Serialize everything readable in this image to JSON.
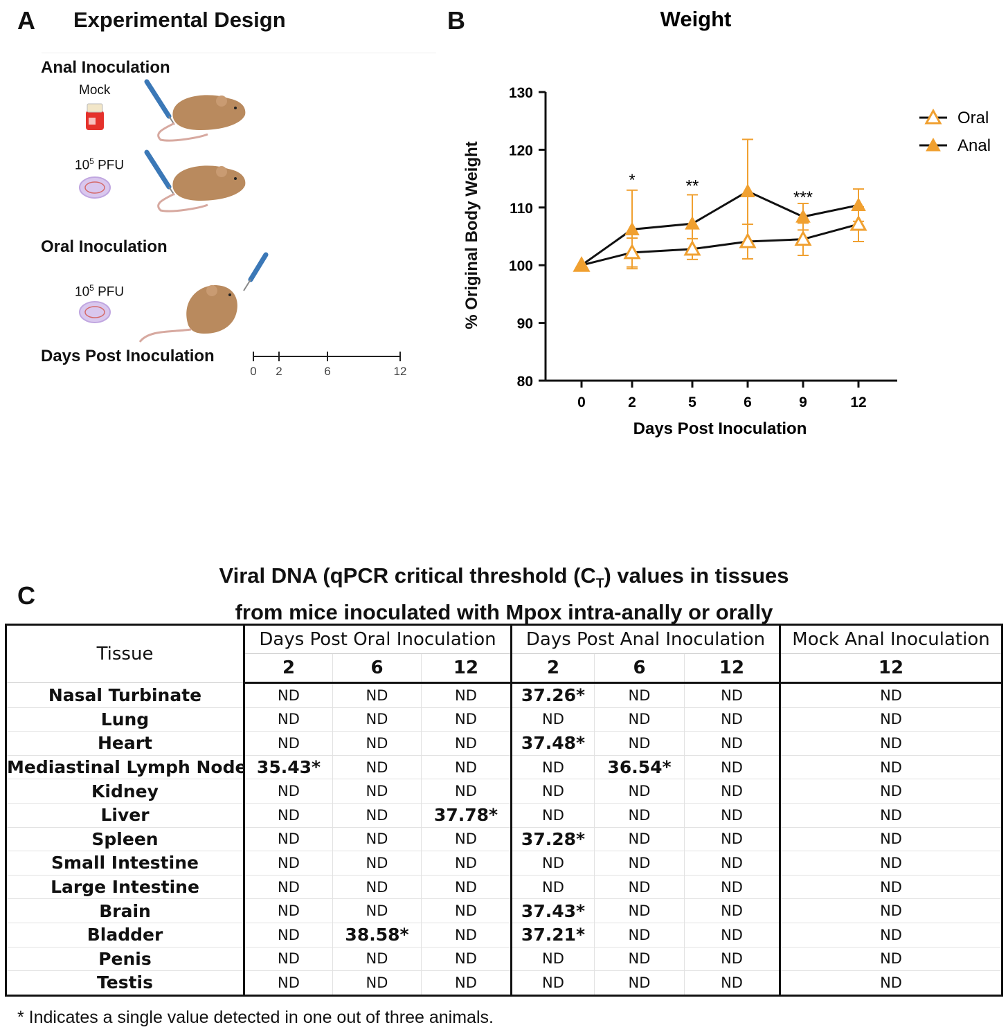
{
  "panel_a": {
    "letter": "A",
    "title": "Experimental Design",
    "anal_inoculation": "Anal Inoculation",
    "mock": "Mock",
    "dose1_base": "10",
    "dose1_exp": "5",
    "dose1_unit": " PFU",
    "oral_inoculation": "Oral Inoculation",
    "dose2_base": "10",
    "dose2_exp": "5",
    "dose2_unit": " PFU",
    "days_post_inoculation": "Days Post Inoculation",
    "timeline_ticks": [
      "0",
      "2",
      "6",
      "12"
    ],
    "colors": {
      "mouse": "#b98a5e",
      "mock_tube": "#e5312b",
      "virus": "#d9c7ee",
      "syringe": "#3b78b7"
    }
  },
  "panel_b": {
    "letter": "B",
    "chart_data": {
      "type": "line",
      "title": "Weight",
      "xlabel": "Days Post Inoculation",
      "ylabel": "% Original Body Weight",
      "categories": [
        "0",
        "2",
        "5",
        "6",
        "9",
        "12"
      ],
      "ylim": [
        80,
        130
      ],
      "yticks": [
        "80",
        "90",
        "100",
        "110",
        "120",
        "130"
      ],
      "series": [
        {
          "name": "Oral",
          "marker": "open-triangle",
          "color": "#f0a030",
          "values": [
            100,
            102.2,
            102.8,
            104.1,
            104.5,
            107.1
          ],
          "errors": [
            0,
            2.5,
            1.8,
            3.0,
            2.8,
            3.0
          ]
        },
        {
          "name": "Anal",
          "marker": "filled-triangle",
          "color": "#f0a030",
          "values": [
            100,
            106.2,
            107.2,
            112.8,
            108.4,
            110.4
          ],
          "errors": [
            0,
            6.8,
            5.0,
            9.0,
            2.3,
            2.8
          ]
        }
      ],
      "annotations": [
        {
          "category": "2",
          "text": "*",
          "y": 115.5
        },
        {
          "category": "5",
          "text": "**",
          "y": 114.5
        },
        {
          "category": "9",
          "text": "***",
          "y": 112.5
        }
      ],
      "legend_position": "top-right",
      "line_color": "#111111"
    }
  },
  "panel_c": {
    "letter": "C",
    "title_line1": "Viral DNA (qPCR critical threshold (C",
    "title_sub": "T",
    "title_line1_end": ") values in tissues",
    "title_line2": "from mice inoculated with Mpox intra-anally or orally",
    "table": {
      "tissue_header": "Tissue",
      "groups": [
        "Days Post Oral Inoculation",
        "Days Post Anal Inoculation",
        "Mock Anal Inoculation"
      ],
      "days": [
        "2",
        "6",
        "12",
        "2",
        "6",
        "12",
        "12"
      ],
      "rows": [
        {
          "tissue": "Nasal Turbinate",
          "values": [
            "ND",
            "ND",
            "ND",
            "37.26*",
            "ND",
            "ND",
            "ND"
          ]
        },
        {
          "tissue": "Lung",
          "values": [
            "ND",
            "ND",
            "ND",
            "ND",
            "ND",
            "ND",
            "ND"
          ]
        },
        {
          "tissue": "Heart",
          "values": [
            "ND",
            "ND",
            "ND",
            "37.48*",
            "ND",
            "ND",
            "ND"
          ]
        },
        {
          "tissue": "Mediastinal Lymph Node",
          "values": [
            "35.43*",
            "ND",
            "ND",
            "ND",
            "36.54*",
            "ND",
            "ND"
          ]
        },
        {
          "tissue": "Kidney",
          "values": [
            "ND",
            "ND",
            "ND",
            "ND",
            "ND",
            "ND",
            "ND"
          ]
        },
        {
          "tissue": "Liver",
          "values": [
            "ND",
            "ND",
            "37.78*",
            "ND",
            "ND",
            "ND",
            "ND"
          ]
        },
        {
          "tissue": "Spleen",
          "values": [
            "ND",
            "ND",
            "ND",
            "37.28*",
            "ND",
            "ND",
            "ND"
          ]
        },
        {
          "tissue": "Small Intestine",
          "values": [
            "ND",
            "ND",
            "ND",
            "ND",
            "ND",
            "ND",
            "ND"
          ]
        },
        {
          "tissue": "Large Intestine",
          "values": [
            "ND",
            "ND",
            "ND",
            "ND",
            "ND",
            "ND",
            "ND"
          ]
        },
        {
          "tissue": "Brain",
          "values": [
            "ND",
            "ND",
            "ND",
            "37.43*",
            "ND",
            "ND",
            "ND"
          ]
        },
        {
          "tissue": "Bladder",
          "values": [
            "ND",
            "38.58*",
            "ND",
            "37.21*",
            "ND",
            "ND",
            "ND"
          ]
        },
        {
          "tissue": "Penis",
          "values": [
            "ND",
            "ND",
            "ND",
            "ND",
            "ND",
            "ND",
            "ND"
          ]
        },
        {
          "tissue": "Testis",
          "values": [
            "ND",
            "ND",
            "ND",
            "ND",
            "ND",
            "ND",
            "ND"
          ]
        }
      ]
    },
    "footnote": "* Indicates a single value detected in one out of three animals."
  }
}
